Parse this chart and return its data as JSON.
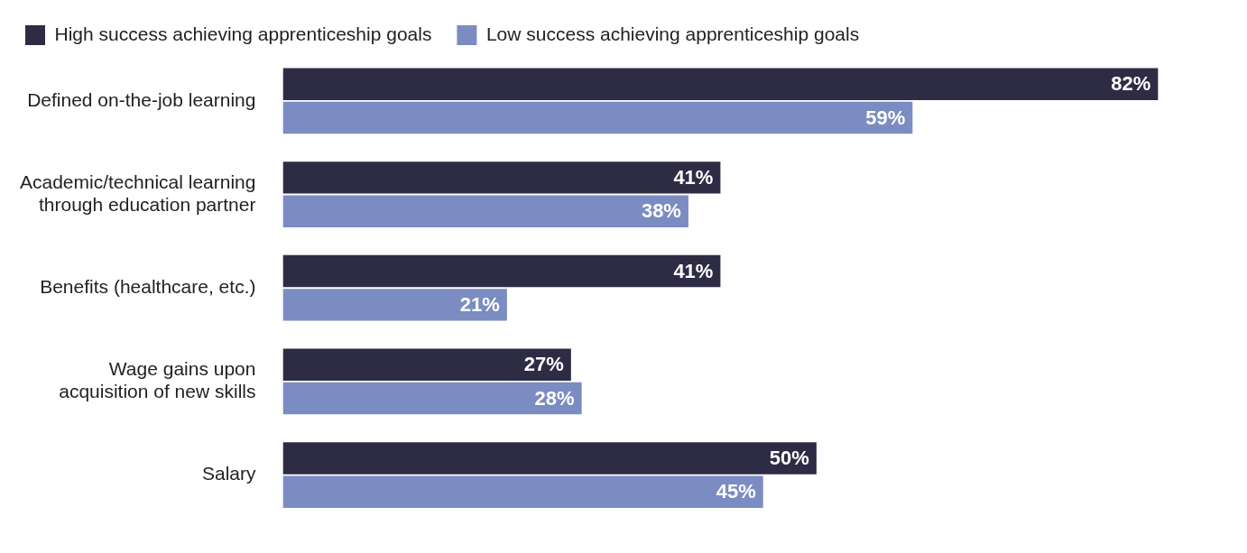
{
  "chart_data": {
    "type": "bar",
    "orientation": "horizontal",
    "categories": [
      "Defined on-the-job learning",
      "Academic/technical learning\nthrough education partner",
      "Benefits (healthcare, etc.)",
      "Wage gains upon\nacquisition of new skills",
      "Salary"
    ],
    "series": [
      {
        "name": "High success achieving apprenticeship goals",
        "color": "#2e2c45",
        "values": [
          82,
          41,
          41,
          27,
          50
        ],
        "value_labels": [
          "82%",
          "41%",
          "41%",
          "27%",
          "50%"
        ]
      },
      {
        "name": "Low success achieving apprenticeship goals",
        "color": "#7b8cc2",
        "values": [
          59,
          38,
          21,
          28,
          45
        ],
        "value_labels": [
          "59%",
          "38%",
          "21%",
          "28%",
          "45%"
        ]
      }
    ],
    "legend": "top left",
    "tick_labels": "y"
  }
}
